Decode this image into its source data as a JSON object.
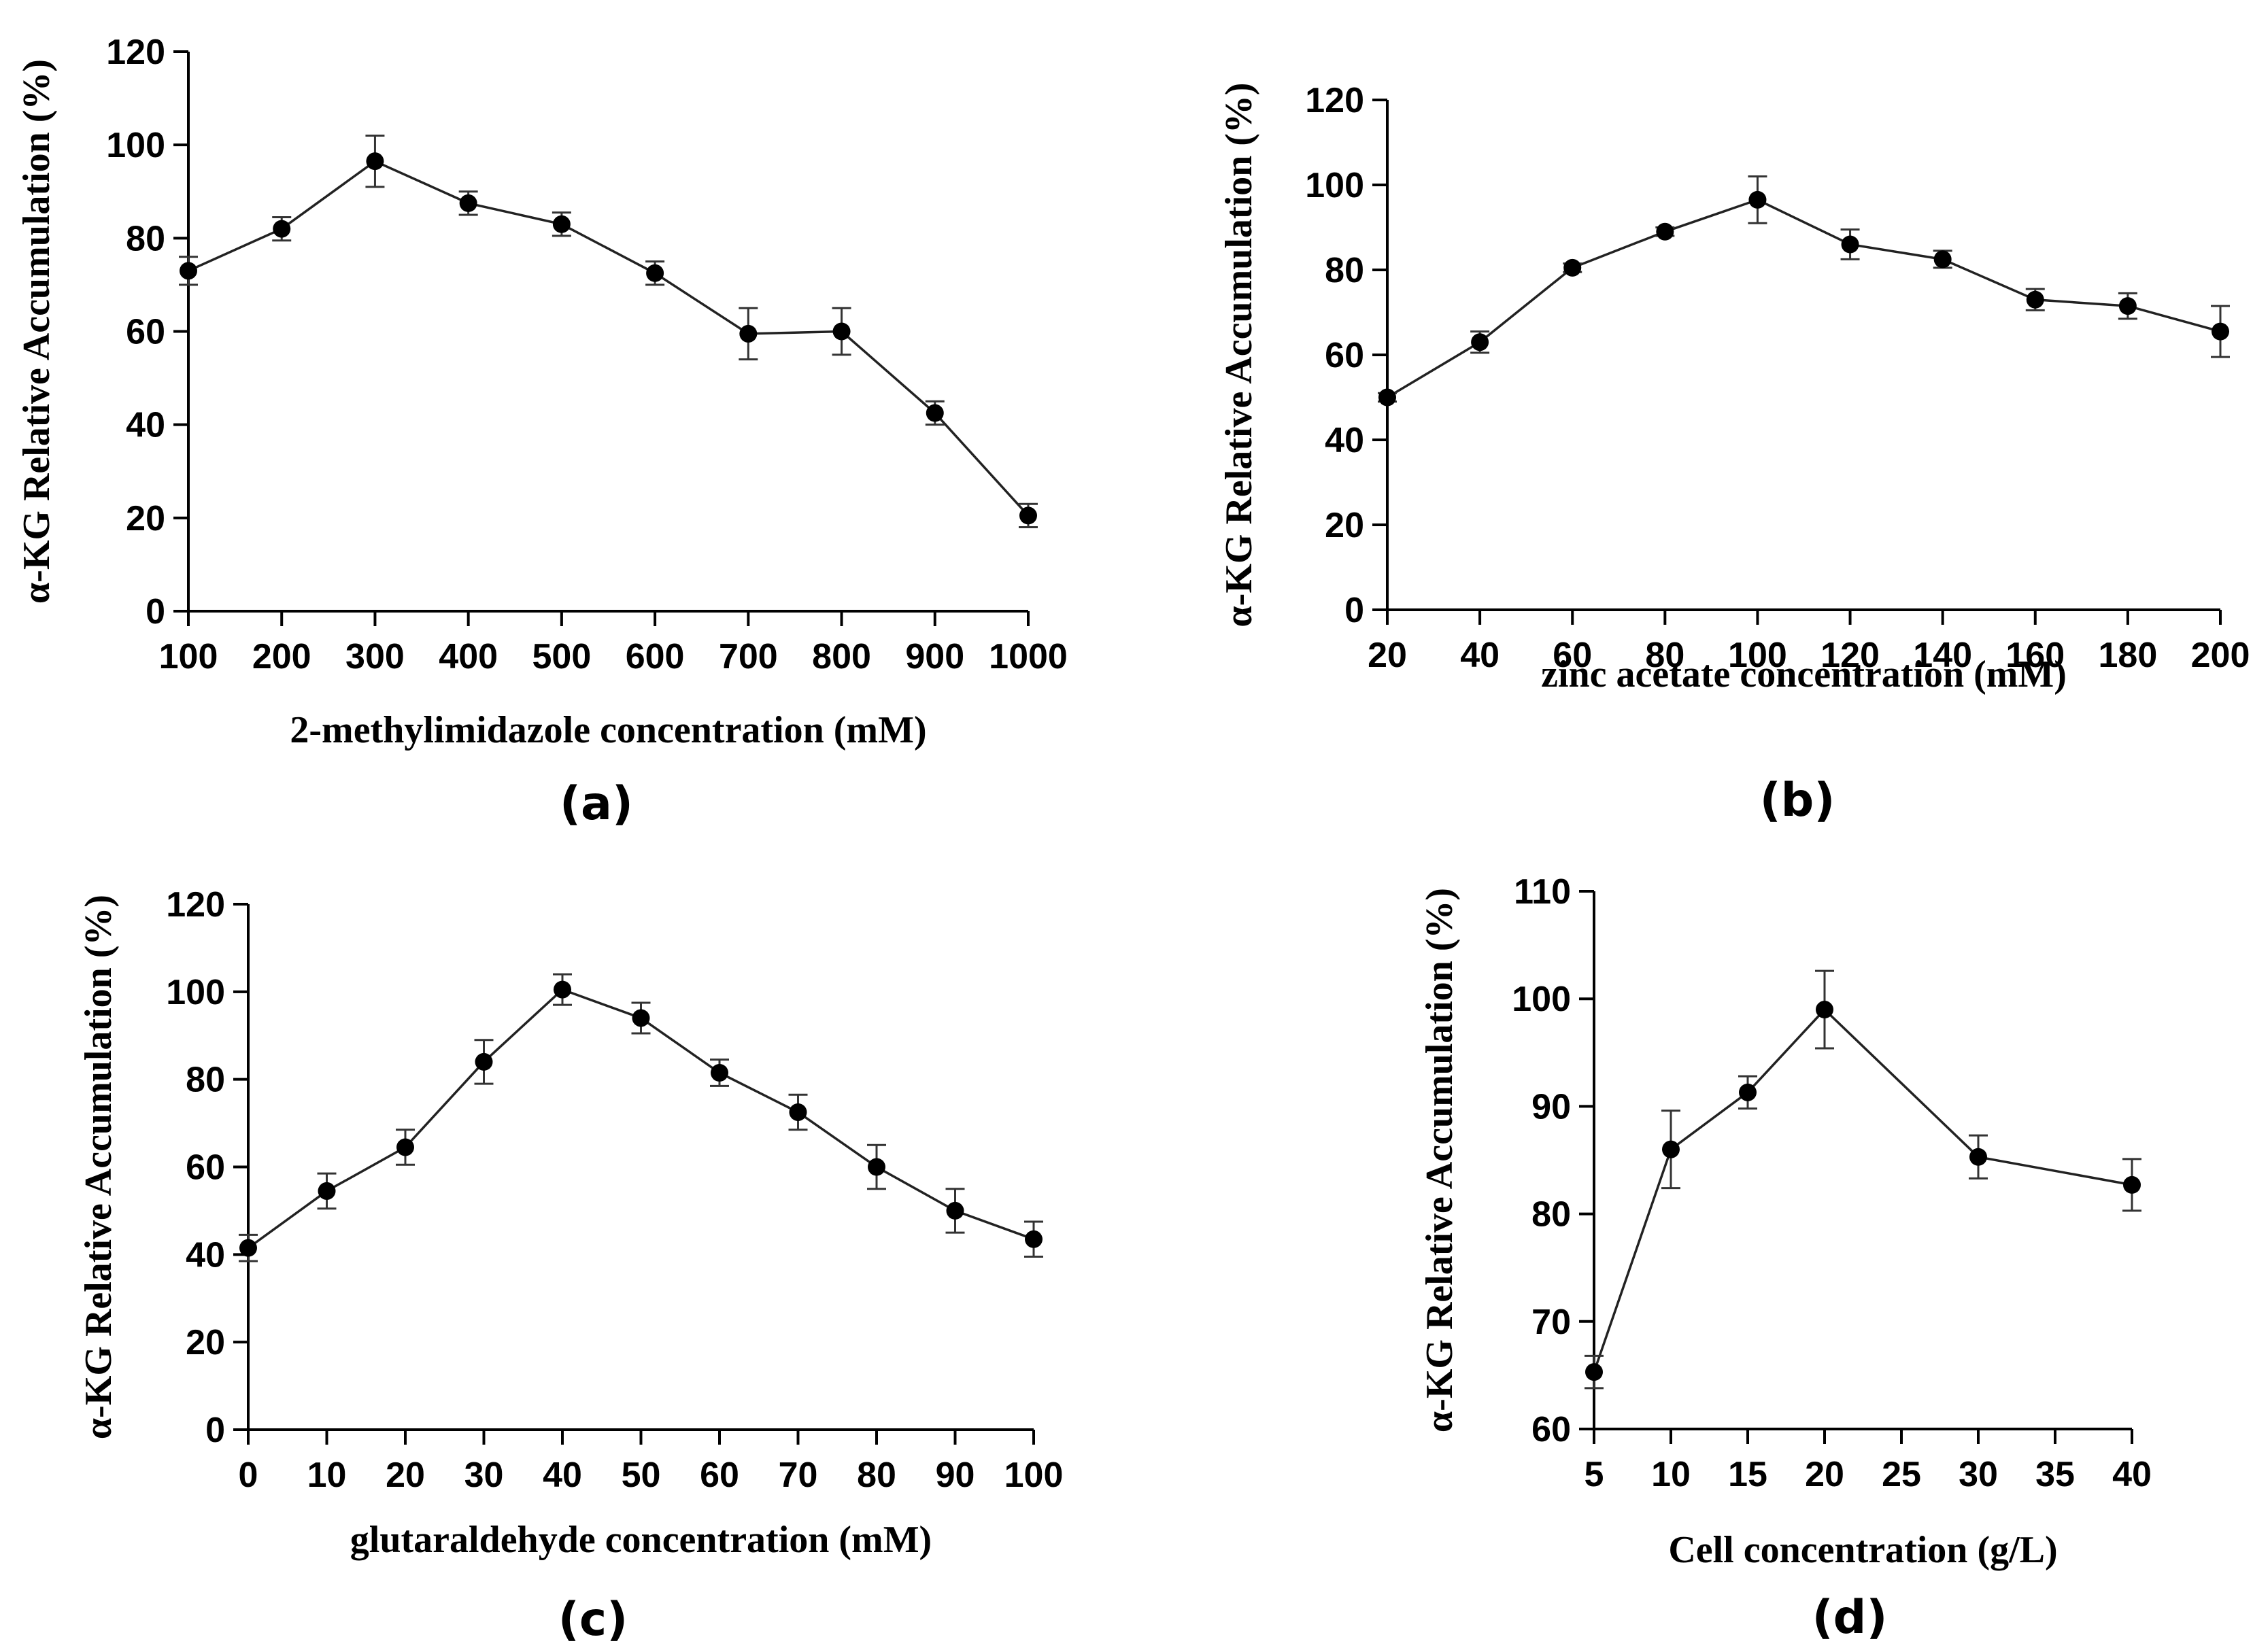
{
  "chart_data": [
    {
      "type": "line",
      "panel_label": "(a)",
      "xlabel": "2-methylimidazole concentration (mM)",
      "ylabel": "α-KG Relative Accumulation (%)",
      "x": [
        100,
        200,
        300,
        400,
        500,
        600,
        700,
        800,
        900,
        1000
      ],
      "xticks": [
        100,
        200,
        300,
        400,
        500,
        600,
        700,
        800,
        900,
        1000
      ],
      "xlim": [
        100,
        1000
      ],
      "yticks": [
        0,
        20,
        40,
        60,
        80,
        100,
        120
      ],
      "ylim": [
        0,
        120
      ],
      "series": [
        {
          "values": [
            73,
            82,
            96.5,
            87.5,
            83,
            72.5,
            59.5,
            60,
            42.5,
            20.5
          ],
          "errors": [
            3,
            2.5,
            5.5,
            2.5,
            2.5,
            2.5,
            5.5,
            5,
            2.5,
            2.5
          ]
        }
      ],
      "grid": false
    },
    {
      "type": "line",
      "panel_label": "(b)",
      "xlabel": "zinc acetate concentration (mM)",
      "ylabel": "α-KG Relative Accumulation (%)",
      "x": [
        20,
        40,
        60,
        80,
        100,
        120,
        140,
        160,
        180,
        200
      ],
      "xticks": [
        20,
        40,
        60,
        80,
        100,
        120,
        140,
        160,
        180,
        200
      ],
      "xlim": [
        20,
        200
      ],
      "yticks": [
        0,
        20,
        40,
        60,
        80,
        100,
        120
      ],
      "ylim": [
        0,
        120
      ],
      "series": [
        {
          "values": [
            50,
            63,
            80.5,
            89,
            96.5,
            86,
            82.5,
            73,
            71.5,
            65.5
          ],
          "errors": [
            1,
            2.5,
            1,
            1,
            5.5,
            3.5,
            2,
            2.5,
            3,
            6
          ]
        }
      ],
      "grid": false
    },
    {
      "type": "line",
      "panel_label": "(c)",
      "xlabel": "glutaraldehyde concentration (mM)",
      "ylabel": "α-KG Relative Accumulation (%)",
      "x": [
        0,
        10,
        20,
        30,
        40,
        50,
        60,
        70,
        80,
        90,
        100
      ],
      "xticks": [
        0,
        10,
        20,
        30,
        40,
        50,
        60,
        70,
        80,
        90,
        100
      ],
      "xlim": [
        0,
        100
      ],
      "yticks": [
        0,
        20,
        40,
        60,
        80,
        100,
        120
      ],
      "ylim": [
        0,
        120
      ],
      "series": [
        {
          "values": [
            41.5,
            54.5,
            64.5,
            84,
            100.5,
            94,
            81.5,
            72.5,
            60,
            50,
            43.5
          ],
          "errors": [
            3,
            4,
            4,
            5,
            3.5,
            3.5,
            3,
            4,
            5,
            5,
            4
          ]
        }
      ],
      "grid": false
    },
    {
      "type": "line",
      "panel_label": "(d)",
      "xlabel": "Cell concentration (g/L)",
      "ylabel": "α-KG Relative Accumulation (%)",
      "x": [
        5,
        10,
        15,
        20,
        30,
        40
      ],
      "xticks": [
        5,
        10,
        15,
        20,
        25,
        30,
        35,
        40
      ],
      "xlim": [
        5,
        40
      ],
      "yticks": [
        60,
        70,
        80,
        90,
        100,
        110
      ],
      "ylim": [
        60,
        110
      ],
      "series": [
        {
          "values": [
            65.3,
            86,
            91.3,
            99,
            85.3,
            82.7
          ],
          "errors": [
            1.5,
            3.6,
            1.5,
            3.6,
            2,
            2.4
          ]
        }
      ],
      "grid": false
    }
  ]
}
